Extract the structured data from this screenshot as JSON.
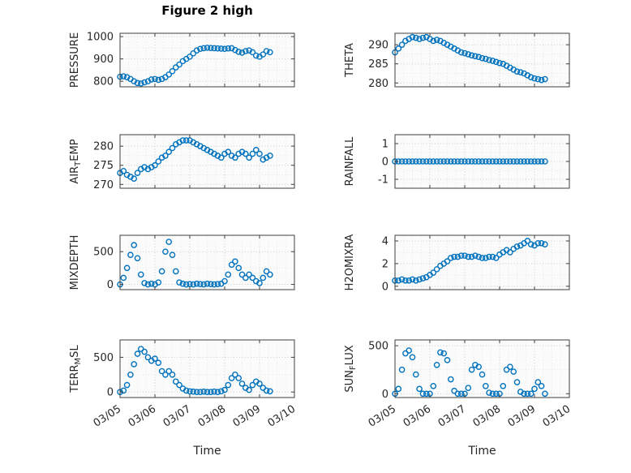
{
  "chart_data": {
    "type": "scatter",
    "title": "Figure 2 high",
    "xlabel": "Time",
    "marker_color": "#0072BD",
    "xlim": [
      0,
      5
    ],
    "xticks": [
      0,
      1,
      2,
      3,
      4,
      5
    ],
    "xtick_labels": [
      "03/05",
      "03/06",
      "03/07",
      "03/08",
      "03/09",
      "03/10"
    ],
    "x_days": [
      0,
      0.1,
      0.2,
      0.3,
      0.4,
      0.5,
      0.6,
      0.7,
      0.8,
      0.9,
      1,
      1.1,
      1.2,
      1.3,
      1.4,
      1.5,
      1.6,
      1.7,
      1.8,
      1.9,
      2,
      2.1,
      2.2,
      2.3,
      2.4,
      2.5,
      2.6,
      2.7,
      2.8,
      2.9,
      3,
      3.1,
      3.2,
      3.3,
      3.4,
      3.5,
      3.6,
      3.7,
      3.8,
      3.9,
      4,
      4.1,
      4.2,
      4.3
    ],
    "series": [
      {
        "name": "PRESSURE",
        "label": [
          {
            "text": "PRESSURE"
          }
        ],
        "ylim": [
          775,
          1015
        ],
        "yticks": [
          800,
          900,
          1000
        ],
        "y": [
          820,
          822,
          818,
          810,
          800,
          792,
          790,
          795,
          800,
          808,
          810,
          806,
          810,
          818,
          830,
          845,
          862,
          875,
          890,
          900,
          910,
          925,
          938,
          945,
          948,
          950,
          949,
          948,
          947,
          946,
          945,
          947,
          948,
          940,
          932,
          928,
          935,
          938,
          930,
          915,
          910,
          920,
          935,
          930
        ]
      },
      {
        "name": "THETA",
        "label": [
          {
            "text": "THETA"
          }
        ],
        "ylim": [
          279,
          293
        ],
        "yticks": [
          280,
          285,
          290
        ],
        "y": [
          288,
          289,
          290,
          291,
          291.5,
          292,
          291.8,
          291.5,
          291.8,
          292,
          291.5,
          291,
          291.3,
          291,
          290.5,
          290,
          289.5,
          289,
          288.5,
          288,
          287.8,
          287.5,
          287.2,
          287,
          286.8,
          286.5,
          286.3,
          286,
          285.8,
          285.5,
          285.2,
          285,
          284.5,
          284,
          283.5,
          283,
          282.8,
          282.5,
          282,
          281.5,
          281.2,
          281,
          280.8,
          281
        ]
      },
      {
        "name": "AIR_TEMP",
        "label": [
          {
            "text": "AIR"
          },
          {
            "text": "T",
            "sub": true
          },
          {
            "text": "EMP"
          }
        ],
        "ylim": [
          269,
          283
        ],
        "yticks": [
          270,
          275,
          280
        ],
        "y": [
          273,
          273.5,
          272.5,
          272,
          271.5,
          273,
          274,
          274.5,
          274,
          274.5,
          275,
          276,
          277,
          277.5,
          278.5,
          279.5,
          280.5,
          281,
          281.5,
          281.5,
          281.5,
          281,
          280.5,
          280,
          279.5,
          279,
          278.5,
          278,
          277.5,
          277,
          278,
          278.5,
          277.5,
          277,
          278,
          278.5,
          278,
          277,
          278,
          279,
          278,
          276.5,
          277,
          277.5
        ]
      },
      {
        "name": "RAINFALL",
        "label": [
          {
            "text": "RAINFALL"
          }
        ],
        "ylim": [
          -1.5,
          1.5
        ],
        "yticks": [
          -1,
          0,
          1
        ],
        "y": [
          0,
          0,
          0,
          0,
          0,
          0,
          0,
          0,
          0,
          0,
          0,
          0,
          0,
          0,
          0,
          0,
          0,
          0,
          0,
          0,
          0,
          0,
          0,
          0,
          0,
          0,
          0,
          0,
          0,
          0,
          0,
          0,
          0,
          0,
          0,
          0,
          0,
          0,
          0,
          0,
          0,
          0,
          0,
          0
        ]
      },
      {
        "name": "MIXDEPTH",
        "label": [
          {
            "text": "MIXDEPTH"
          }
        ],
        "ylim": [
          -80,
          750
        ],
        "yticks": [
          0,
          500
        ],
        "y": [
          0,
          100,
          250,
          450,
          600,
          400,
          150,
          20,
          0,
          10,
          0,
          30,
          200,
          500,
          650,
          450,
          200,
          30,
          10,
          0,
          5,
          0,
          10,
          5,
          0,
          10,
          5,
          0,
          5,
          10,
          50,
          150,
          300,
          350,
          250,
          150,
          100,
          150,
          100,
          50,
          20,
          100,
          200,
          150
        ]
      },
      {
        "name": "H2OMIXRA",
        "label": [
          {
            "text": "H2OMIXRA"
          }
        ],
        "ylim": [
          -0.3,
          4.5
        ],
        "yticks": [
          0,
          2,
          4
        ],
        "y": [
          0.5,
          0.5,
          0.6,
          0.5,
          0.5,
          0.6,
          0.5,
          0.6,
          0.7,
          0.8,
          1,
          1.2,
          1.5,
          1.8,
          2,
          2.2,
          2.5,
          2.6,
          2.6,
          2.7,
          2.7,
          2.6,
          2.6,
          2.7,
          2.6,
          2.5,
          2.5,
          2.6,
          2.6,
          2.5,
          2.8,
          3,
          3.2,
          3,
          3.3,
          3.5,
          3.6,
          3.8,
          4,
          3.7,
          3.6,
          3.8,
          3.8,
          3.7
        ]
      },
      {
        "name": "TERR_MSL",
        "label": [
          {
            "text": "TERR"
          },
          {
            "text": "M",
            "sub": true
          },
          {
            "text": "SL"
          }
        ],
        "ylim": [
          -80,
          750
        ],
        "yticks": [
          0,
          500
        ],
        "y": [
          0,
          20,
          100,
          250,
          400,
          550,
          620,
          580,
          500,
          450,
          480,
          420,
          300,
          250,
          300,
          250,
          150,
          100,
          50,
          20,
          10,
          5,
          0,
          0,
          5,
          0,
          0,
          5,
          0,
          10,
          30,
          100,
          200,
          250,
          200,
          120,
          60,
          30,
          100,
          150,
          120,
          60,
          20,
          10
        ]
      },
      {
        "name": "SUN_FLUX",
        "label": [
          {
            "text": "SUN"
          },
          {
            "text": "F",
            "sub": true
          },
          {
            "text": "LUX"
          }
        ],
        "ylim": [
          -40,
          560
        ],
        "yticks": [
          0,
          500
        ],
        "y": [
          0,
          50,
          250,
          420,
          450,
          380,
          200,
          50,
          0,
          0,
          0,
          80,
          300,
          430,
          420,
          350,
          150,
          30,
          0,
          0,
          0,
          60,
          250,
          300,
          280,
          200,
          80,
          10,
          0,
          0,
          0,
          80,
          250,
          280,
          230,
          120,
          20,
          0,
          0,
          0,
          50,
          120,
          80,
          0
        ]
      }
    ]
  }
}
